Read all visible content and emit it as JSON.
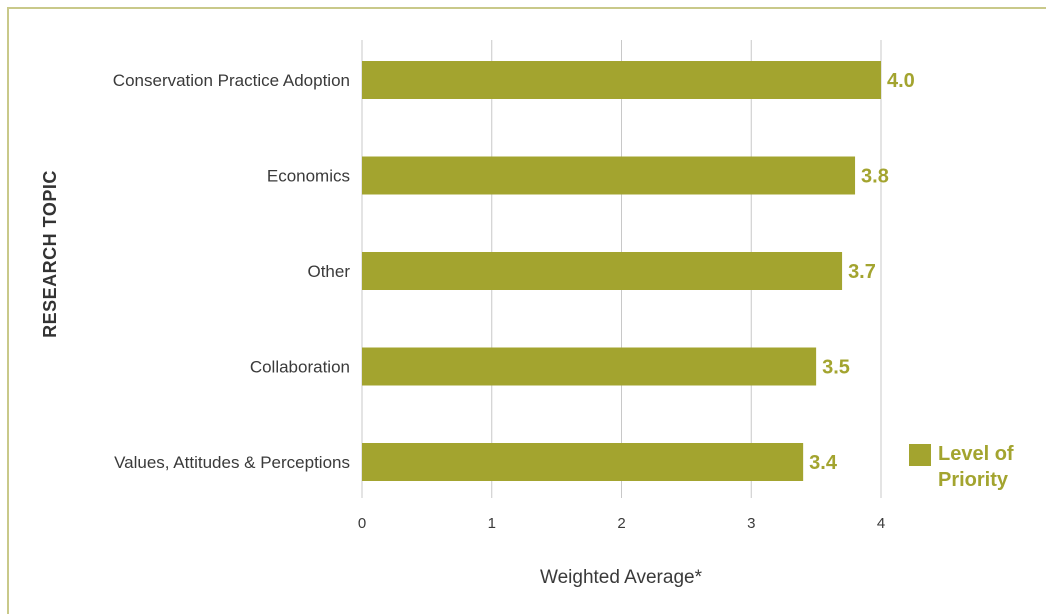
{
  "chart_data": {
    "type": "bar",
    "orientation": "horizontal",
    "categories": [
      "Conservation Practice Adoption",
      "Economics",
      "Other",
      "Collaboration",
      "Values, Attitudes & Perceptions"
    ],
    "series": [
      {
        "name": "Level of Priority",
        "values": [
          4.0,
          3.8,
          3.7,
          3.5,
          3.4
        ],
        "color": "#a3a42f"
      }
    ],
    "data_labels": [
      "4.0",
      "3.8",
      "3.7",
      "3.5",
      "3.4"
    ],
    "xlabel": "Weighted Average*",
    "ylabel": "RESEARCH TOPIC",
    "xlim": [
      0,
      4
    ],
    "xticks": [
      "0",
      "1",
      "2",
      "3",
      "4"
    ],
    "grid": "vertical",
    "legend": {
      "position": "bottom-right",
      "lines": [
        "Level of",
        "Priority"
      ]
    }
  },
  "colors": {
    "bar": "#a3a42f",
    "value_label": "#a3a42f",
    "legend_text": "#a3a42f",
    "frame": "#c9c98a",
    "gridline": "#c8c8c8",
    "text": "#3a3a3a"
  }
}
